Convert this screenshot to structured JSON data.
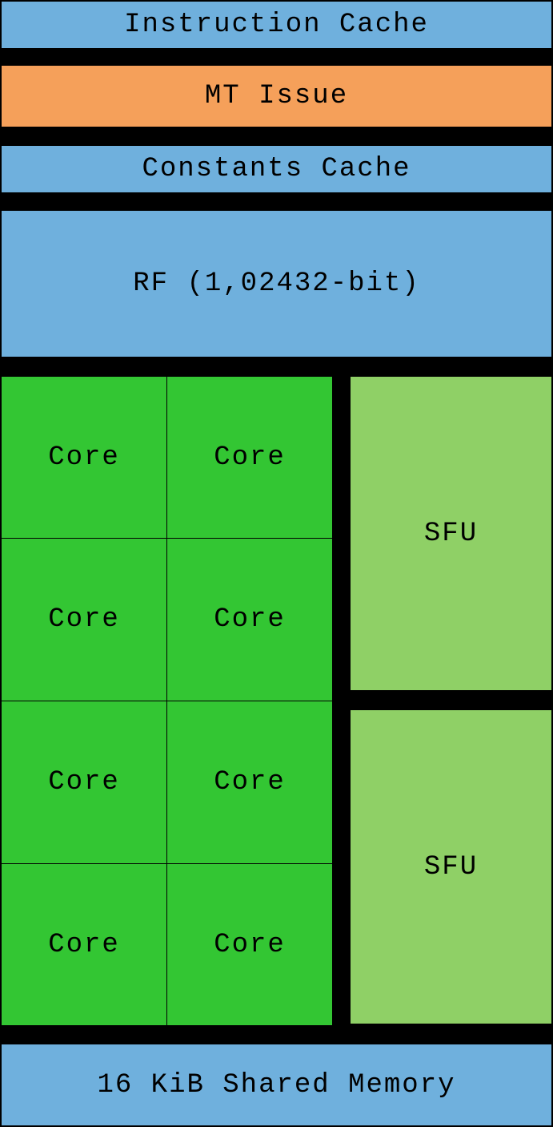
{
  "blocks": {
    "instruction_cache": "Instruction Cache",
    "mt_issue": "MT Issue",
    "constants_cache": "Constants Cache",
    "register_file": "RF (1,02432-bit)",
    "shared_memory": "16 KiB Shared Memory"
  },
  "cores": [
    "Core",
    "Core",
    "Core",
    "Core",
    "Core",
    "Core",
    "Core",
    "Core"
  ],
  "sfus": [
    "SFU",
    "SFU"
  ],
  "colors": {
    "cache": "#6fb0dd",
    "issue": "#f5a05a",
    "core": "#33c633",
    "sfu": "#8fd066",
    "background": "#000000"
  }
}
